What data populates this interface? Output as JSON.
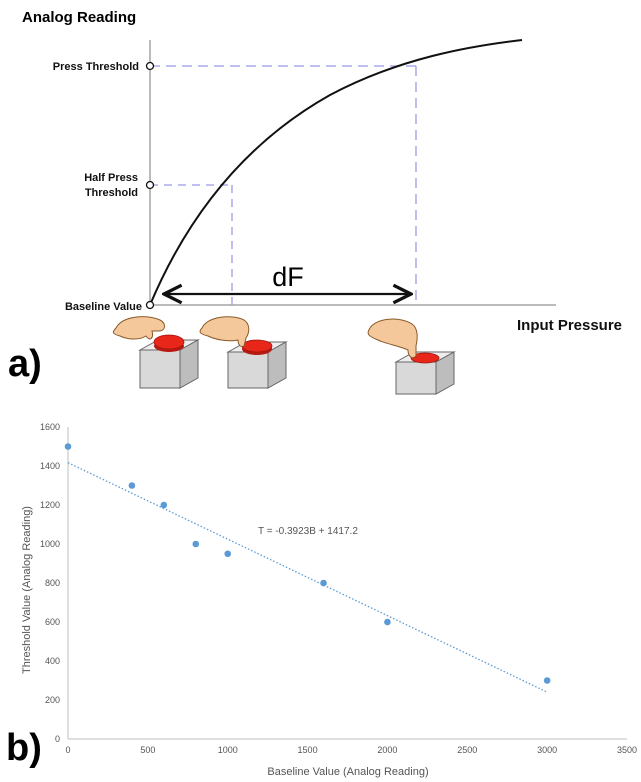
{
  "panel_a": {
    "label": "a)",
    "y_axis_title": "Analog Reading",
    "x_axis_title": "Input Pressure",
    "press_threshold": "Press Threshold",
    "half_press_line1": "Half Press",
    "half_press_line2": "Threshold",
    "baseline_value": "Baseline Value",
    "df_label": "dF",
    "colors": {
      "curve": "#111111",
      "dashed": "#9a9ae8",
      "button_red": "#e8261a",
      "box": "#d9d9d9",
      "hand": "#f4c89a"
    },
    "icons": [
      "hand-pressing-button-icon",
      "hand-pressing-button-icon",
      "hand-pressing-button-icon"
    ]
  },
  "panel_b": {
    "label": "b)",
    "equation": "T = -0.3923B + 1417.2"
  },
  "chart_data": {
    "type": "scatter",
    "title": "",
    "xlabel": "Baseline Value (Analog Reading)",
    "ylabel": "Threshold Value (Analog Reading)",
    "xlim": [
      0,
      3500
    ],
    "ylim": [
      0,
      1600
    ],
    "xticks": [
      "0",
      "500",
      "1000",
      "1500",
      "2000",
      "2500",
      "3000",
      "3500"
    ],
    "yticks": [
      "0",
      "200",
      "400",
      "600",
      "800",
      "1000",
      "1200",
      "1400",
      "1600"
    ],
    "grid": false,
    "point_color": "#5b9bd5",
    "points": [
      {
        "x": 0,
        "y": 1500
      },
      {
        "x": 400,
        "y": 1300
      },
      {
        "x": 600,
        "y": 1200
      },
      {
        "x": 800,
        "y": 1000
      },
      {
        "x": 1000,
        "y": 950
      },
      {
        "x": 1600,
        "y": 800
      },
      {
        "x": 2000,
        "y": 600
      },
      {
        "x": 3000,
        "y": 300
      }
    ],
    "trendline": {
      "slope": -0.3923,
      "intercept": 1417.2,
      "x_start": 0,
      "x_end": 3000,
      "style": "dotted"
    }
  }
}
